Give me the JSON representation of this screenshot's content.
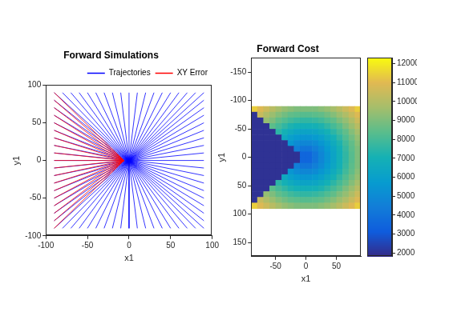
{
  "chart_data": [
    {
      "type": "line",
      "title": "Forward Simulations",
      "x_label": "x1",
      "y_label": "y1",
      "xlim": [
        -100,
        100
      ],
      "ylim": [
        -100,
        100
      ],
      "xticks": [
        -100,
        -50,
        0,
        50,
        100
      ],
      "yticks": [
        -100,
        -50,
        0,
        50,
        100
      ],
      "grid": false,
      "legend": "northeast",
      "series": [
        {
          "name": "Trajectories",
          "color": "#0000ff",
          "x": [
            0,
            90,
            null,
            0,
            90,
            null,
            0,
            90,
            null,
            0,
            90,
            null,
            0,
            90,
            null,
            0,
            90,
            null,
            0,
            90,
            null,
            0,
            90,
            null,
            0,
            90,
            null,
            0,
            90,
            null,
            0,
            90,
            null,
            0,
            90,
            null,
            0,
            90,
            null,
            0,
            90,
            null,
            0,
            90,
            null,
            0,
            90,
            null,
            0,
            90,
            null,
            0,
            90,
            null,
            0,
            90,
            null,
            0,
            80,
            null,
            0,
            70,
            null,
            0,
            60,
            null,
            0,
            50,
            null,
            0,
            40,
            null,
            0,
            30,
            null,
            0,
            20,
            null,
            0,
            10,
            null,
            0,
            0,
            null,
            0,
            -10,
            null,
            0,
            -20,
            null,
            0,
            -30,
            null,
            0,
            -40,
            null,
            0,
            -50,
            null,
            0,
            -60,
            null,
            0,
            -70,
            null,
            0,
            -80,
            null,
            0,
            -90,
            null,
            0,
            -90,
            null,
            0,
            -90,
            null,
            0,
            -90,
            null,
            0,
            -90,
            null,
            0,
            -90,
            null,
            0,
            -90,
            null,
            0,
            -90,
            null,
            0,
            -90,
            null,
            0,
            -90,
            null,
            0,
            -90,
            null,
            0,
            -90,
            null,
            0,
            -90,
            null,
            0,
            -90,
            null,
            0,
            -90,
            null,
            0,
            -90,
            null,
            0,
            -90,
            null,
            0,
            -90,
            null,
            0,
            -90,
            null,
            0,
            -80,
            null,
            0,
            -70,
            null,
            0,
            -60,
            null,
            0,
            -50,
            null,
            0,
            -40,
            null,
            0,
            -30,
            null,
            0,
            -20,
            null,
            0,
            -10,
            null,
            0,
            0,
            null,
            0,
            10,
            null,
            0,
            20,
            null,
            0,
            30,
            null,
            0,
            40,
            null,
            0,
            50,
            null,
            0,
            60,
            null,
            0,
            70,
            null,
            0,
            80
          ],
          "y": [
            0,
            -90,
            null,
            0,
            -80,
            null,
            0,
            -70,
            null,
            0,
            -60,
            null,
            0,
            -50,
            null,
            0,
            -40,
            null,
            0,
            -30,
            null,
            0,
            -20,
            null,
            0,
            -10,
            null,
            0,
            0,
            null,
            0,
            10,
            null,
            0,
            20,
            null,
            0,
            30,
            null,
            0,
            40,
            null,
            0,
            50,
            null,
            0,
            60,
            null,
            0,
            70,
            null,
            0,
            80,
            null,
            0,
            90,
            null,
            0,
            90,
            null,
            0,
            90,
            null,
            0,
            90,
            null,
            0,
            90,
            null,
            0,
            90,
            null,
            0,
            90,
            null,
            0,
            90,
            null,
            0,
            90,
            null,
            0,
            90,
            null,
            0,
            90,
            null,
            0,
            90,
            null,
            0,
            90,
            null,
            0,
            90,
            null,
            0,
            90,
            null,
            0,
            90,
            null,
            0,
            90,
            null,
            0,
            90,
            null,
            0,
            90,
            null,
            0,
            80,
            null,
            0,
            70,
            null,
            0,
            60,
            null,
            0,
            50,
            null,
            0,
            40,
            null,
            0,
            30,
            null,
            0,
            20,
            null,
            0,
            10,
            null,
            0,
            0,
            null,
            0,
            -10,
            null,
            0,
            -20,
            null,
            0,
            -30,
            null,
            0,
            -40,
            null,
            0,
            -50,
            null,
            0,
            -60,
            null,
            0,
            -70,
            null,
            0,
            -80,
            null,
            0,
            -90,
            null,
            0,
            -90,
            null,
            0,
            -90,
            null,
            0,
            -90,
            null,
            0,
            -90,
            null,
            0,
            -90,
            null,
            0,
            -90,
            null,
            0,
            -90,
            null,
            0,
            -90,
            null,
            0,
            -90,
            null,
            0,
            -90,
            null,
            0,
            -90,
            null,
            0,
            -90,
            null,
            0,
            -90,
            null,
            0,
            -90,
            null,
            0,
            -90,
            null,
            0,
            -90,
            null,
            0,
            -90
          ]
        },
        {
          "name": "XY Error",
          "color": "#ff0000",
          "x": [
            -90,
            -6,
            null,
            -90,
            -6,
            null,
            -90,
            -6,
            null,
            -90,
            -6,
            null,
            -90,
            -6,
            null,
            -90,
            -6,
            null,
            -90,
            -6,
            null,
            -90,
            -6,
            null,
            -90,
            -6,
            null,
            -90,
            -6,
            null,
            -90,
            -6,
            null,
            -90,
            -6,
            null,
            -90,
            -6,
            null,
            -90,
            -6,
            null,
            -90,
            -6,
            null,
            -90,
            -6,
            null,
            -90,
            -6,
            null,
            -90,
            -6,
            null,
            -90,
            -6
          ],
          "y": [
            -90,
            0,
            null,
            -80,
            0,
            null,
            -70,
            0,
            null,
            -60,
            0,
            null,
            -50,
            0,
            null,
            -40,
            0,
            null,
            -30,
            0,
            null,
            -20,
            0,
            null,
            -10,
            0,
            null,
            0,
            0,
            null,
            10,
            0,
            null,
            20,
            0,
            null,
            30,
            0,
            null,
            40,
            0,
            null,
            50,
            0,
            null,
            60,
            0,
            null,
            70,
            0,
            null,
            80,
            0,
            null,
            90,
            0
          ]
        }
      ]
    },
    {
      "type": "heatmap",
      "title": "Forward Cost",
      "x_label": "x1",
      "y_label": "y1",
      "xlim": [
        -90,
        90
      ],
      "ylim": [
        -175,
        175
      ],
      "xticks": [
        -50,
        0,
        50
      ],
      "yticks": [
        -150,
        -100,
        -50,
        0,
        50,
        100,
        150
      ],
      "grid": false,
      "cells": {
        "x": [
          -85,
          -75,
          -65,
          -55,
          -45,
          -35,
          -25,
          -15,
          -5,
          5,
          15,
          25,
          35,
          45,
          55,
          65,
          75,
          85
        ],
        "y": [
          -85,
          -75,
          -65,
          -55,
          -45,
          -35,
          -25,
          -15,
          -5,
          5,
          15,
          25,
          35,
          45,
          55,
          65,
          75,
          85
        ],
        "values": [
          [
            11400,
            10900,
            10500,
            10100,
            9700,
            9400,
            9200,
            9000,
            9000,
            9000,
            9000,
            9200,
            9400,
            9700,
            10100,
            10500,
            10900,
            11400
          ],
          [
            2000,
            10400,
            9900,
            9500,
            9100,
            8800,
            8500,
            8400,
            8300,
            8300,
            8400,
            8500,
            8800,
            9100,
            9500,
            9900,
            10400,
            10900
          ],
          [
            2000,
            2000,
            9400,
            9000,
            8500,
            8200,
            7900,
            7700,
            7600,
            7600,
            7700,
            7900,
            8200,
            8500,
            9000,
            9400,
            9900,
            10500
          ],
          [
            2000,
            2000,
            2000,
            8400,
            8000,
            7600,
            7200,
            7000,
            6900,
            6900,
            7000,
            7200,
            7600,
            8000,
            8400,
            9000,
            9500,
            10100
          ],
          [
            2000,
            2000,
            2000,
            2000,
            7500,
            7000,
            6600,
            6300,
            6200,
            6200,
            6300,
            6600,
            7000,
            7500,
            8000,
            8500,
            9100,
            9700
          ],
          [
            2000,
            2000,
            2000,
            2000,
            2000,
            6500,
            6000,
            5700,
            5500,
            5500,
            5700,
            6000,
            6500,
            7000,
            7600,
            8200,
            8800,
            9400
          ],
          [
            2000,
            2000,
            2000,
            2000,
            2000,
            2000,
            5500,
            5000,
            4800,
            4800,
            5000,
            5500,
            6000,
            6600,
            7200,
            7900,
            8500,
            9200
          ],
          [
            2000,
            2000,
            2000,
            2000,
            2000,
            2000,
            2000,
            4500,
            4100,
            4100,
            4500,
            5000,
            5700,
            6300,
            7000,
            7700,
            8400,
            9000
          ],
          [
            2000,
            2000,
            2000,
            2000,
            2000,
            2000,
            2000,
            2000,
            3500,
            3500,
            4100,
            4800,
            5500,
            6200,
            6900,
            7600,
            8300,
            9000
          ],
          [
            2000,
            2000,
            2000,
            2000,
            2000,
            2000,
            2000,
            2000,
            3500,
            3500,
            4100,
            4800,
            5500,
            6200,
            6900,
            7600,
            8300,
            9000
          ],
          [
            2000,
            2000,
            2000,
            2000,
            2000,
            2000,
            2000,
            4500,
            4100,
            4100,
            4500,
            5000,
            5700,
            6300,
            7000,
            7700,
            8400,
            9000
          ],
          [
            2000,
            2000,
            2000,
            2000,
            2000,
            2000,
            5500,
            5000,
            4800,
            4800,
            5000,
            5500,
            6000,
            6600,
            7200,
            7900,
            8500,
            9200
          ],
          [
            2000,
            2000,
            2000,
            2000,
            2000,
            6500,
            6000,
            5700,
            5500,
            5500,
            5700,
            6000,
            6500,
            7000,
            7600,
            8200,
            8800,
            9400
          ],
          [
            2000,
            2000,
            2000,
            2000,
            7500,
            7000,
            6600,
            6300,
            6200,
            6200,
            6300,
            6600,
            7000,
            7500,
            8000,
            8500,
            9100,
            9700
          ],
          [
            2000,
            2000,
            2000,
            8400,
            8000,
            7600,
            7200,
            7000,
            6900,
            6900,
            7000,
            7200,
            7600,
            8000,
            8400,
            9000,
            9500,
            10100
          ],
          [
            2000,
            2000,
            9400,
            9000,
            8500,
            8200,
            7900,
            7700,
            7600,
            7600,
            7700,
            7900,
            8200,
            8500,
            9000,
            9400,
            9900,
            10500
          ],
          [
            2000,
            10400,
            9900,
            9500,
            9100,
            8800,
            8500,
            8400,
            8300,
            8300,
            8400,
            8500,
            8800,
            9100,
            9500,
            9900,
            10400,
            10900
          ],
          [
            11400,
            10900,
            10500,
            10100,
            9700,
            9400,
            9200,
            9000,
            9000,
            9000,
            9000,
            9200,
            9400,
            9700,
            10100,
            10500,
            10900,
            11400
          ]
        ]
      },
      "colorbar": {
        "range": [
          1800,
          12300
        ],
        "ticks": [
          2000,
          3000,
          4000,
          5000,
          6000,
          7000,
          8000,
          9000,
          10000,
          11000,
          12000
        ]
      }
    }
  ]
}
